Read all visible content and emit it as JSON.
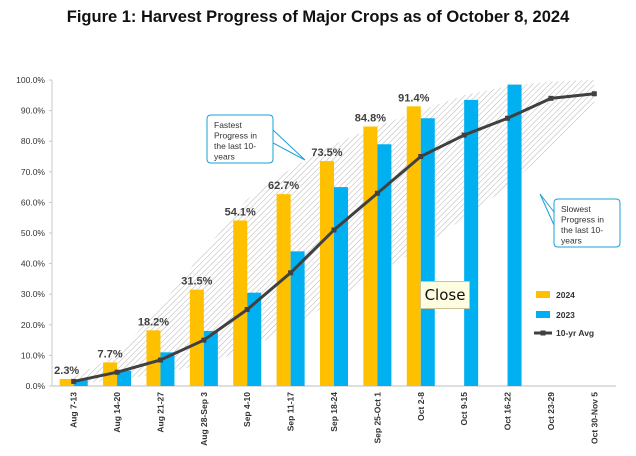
{
  "title": "Figure 1: Harvest Progress of Major Crops as of October 8, 2024",
  "close_label": "Close",
  "colors": {
    "y2024": "#FFC000",
    "y2023": "#00B0F0",
    "avg": "#404040",
    "band_hatch": "#b5b5b5"
  },
  "chart_data": {
    "type": "bar",
    "title": "Figure 1: Harvest Progress of Major Crops as of October 8, 2024",
    "categories": [
      "Aug 7-13",
      "Aug 14-20",
      "Aug 21-27",
      "Aug 28-Sep 3",
      "Sep 4-10",
      "Sep 11-17",
      "Sep 18-24",
      "Sep 25-Oct 1",
      "Oct 2-8",
      "Oct 9-15",
      "Oct 16-22",
      "Oct 23-29",
      "Oct 30-Nov 5"
    ],
    "ylim": [
      0,
      100
    ],
    "yticks": [
      "0.0%",
      "10.0%",
      "20.0%",
      "30.0%",
      "40.0%",
      "50.0%",
      "60.0%",
      "70.0%",
      "80.0%",
      "90.0%",
      "100.0%"
    ],
    "series": [
      {
        "name": "2024",
        "type": "bar",
        "values": [
          2.3,
          7.7,
          18.2,
          31.5,
          54.1,
          62.7,
          73.5,
          84.8,
          91.4,
          null,
          null,
          null,
          null
        ],
        "labels": [
          "2.3%",
          "7.7%",
          "18.2%",
          "31.5%",
          "54.1%",
          "62.7%",
          "73.5%",
          "84.8%",
          "91.4%",
          "",
          "",
          "",
          ""
        ]
      },
      {
        "name": "2023",
        "type": "bar",
        "values": [
          2,
          5,
          11,
          18,
          30.5,
          44,
          65,
          79,
          87.5,
          93.5,
          98.5,
          null,
          null
        ]
      },
      {
        "name": "10-yr Avg",
        "type": "line",
        "values": [
          1.5,
          4.5,
          8.5,
          15,
          25,
          37,
          51,
          63,
          75,
          82,
          87.5,
          94,
          95.5
        ]
      }
    ],
    "band": {
      "upper": [
        3,
        10,
        26,
        44,
        61,
        71,
        79,
        85,
        90,
        95,
        98,
        99.5,
        100
      ],
      "lower": [
        0.5,
        2,
        4,
        7,
        12,
        19,
        28,
        37,
        45,
        55,
        65,
        78,
        92
      ]
    },
    "annotations": [
      {
        "text": "Fastest Progress in the last 10-years",
        "lines": [
          "Fastest",
          "Progress in",
          "the last 10-",
          "years"
        ]
      },
      {
        "text": "Slowest Progress in the last 10-years",
        "lines": [
          "Slowest",
          "Progress in",
          "the last 10-",
          "years"
        ]
      }
    ],
    "legend": {
      "position": "right"
    },
    "grid": false
  }
}
